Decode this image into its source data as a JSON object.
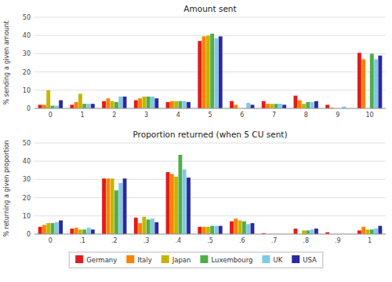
{
  "chart_data": [
    {
      "type": "bar",
      "title": "Amount sent",
      "y_label": "% sending a given amount",
      "categories": [
        "0",
        "1",
        "2",
        "3",
        "4",
        "5",
        "6",
        "7",
        "8",
        "9",
        "10"
      ],
      "series": [
        {
          "name": "Germany",
          "color": "#e41a1c",
          "values": [
            2.0,
            2.0,
            4.0,
            4.5,
            3.5,
            37.0,
            4.0,
            4.0,
            7.0,
            2.0,
            30.5
          ]
        },
        {
          "name": "Italy",
          "color": "#ff7f00",
          "values": [
            2.0,
            3.5,
            5.5,
            5.5,
            4.0,
            39.5,
            2.0,
            2.5,
            4.5,
            0.5,
            27.0
          ]
        },
        {
          "name": "Japan",
          "color": "#c8b400",
          "values": [
            10.0,
            8.0,
            4.0,
            6.5,
            4.0,
            40.0,
            0.0,
            2.5,
            2.5,
            0.0,
            0.0
          ]
        },
        {
          "name": "Luxembourg",
          "color": "#4daf4a",
          "values": [
            1.5,
            2.5,
            3.5,
            6.5,
            4.0,
            41.0,
            0.0,
            2.5,
            3.5,
            0.0,
            30.0
          ]
        },
        {
          "name": "UK",
          "color": "#80c8e8",
          "values": [
            1.5,
            2.5,
            6.5,
            6.5,
            4.0,
            38.5,
            3.0,
            2.5,
            3.5,
            1.0,
            27.0
          ]
        },
        {
          "name": "USA",
          "color": "#2b2b9e",
          "values": [
            4.5,
            2.5,
            6.5,
            5.5,
            3.5,
            39.5,
            2.0,
            2.0,
            4.0,
            0.0,
            29.0
          ]
        }
      ],
      "ylim": [
        0,
        50
      ],
      "yticks": [
        0,
        10,
        20,
        30,
        40,
        50
      ],
      "grid": true
    },
    {
      "type": "bar",
      "title": "Proportion returned (when 5 CU sent)",
      "y_label": "% returning a given proportion",
      "categories": [
        "0",
        ".1",
        ".2",
        ".3",
        ".4",
        ".5",
        ".6",
        ".7",
        ".8",
        ".9",
        "1"
      ],
      "series": [
        {
          "name": "Germany",
          "color": "#e41a1c",
          "values": [
            4.0,
            3.0,
            30.5,
            9.0,
            34.0,
            4.0,
            7.0,
            0.5,
            3.0,
            1.0,
            2.0
          ]
        },
        {
          "name": "Italy",
          "color": "#ff7f00",
          "values": [
            5.0,
            3.5,
            30.5,
            6.0,
            33.0,
            4.0,
            8.5,
            0.0,
            0.0,
            0.0,
            4.0
          ]
        },
        {
          "name": "Japan",
          "color": "#c8b400",
          "values": [
            6.0,
            2.5,
            30.5,
            9.5,
            31.5,
            4.0,
            7.5,
            0.0,
            2.0,
            0.0,
            2.5
          ]
        },
        {
          "name": "Luxembourg",
          "color": "#4daf4a",
          "values": [
            6.0,
            2.5,
            24.0,
            8.0,
            43.5,
            4.5,
            7.0,
            0.0,
            2.0,
            0.0,
            2.5
          ]
        },
        {
          "name": "UK",
          "color": "#80c8e8",
          "values": [
            6.5,
            3.5,
            28.0,
            8.5,
            35.5,
            4.5,
            5.5,
            0.0,
            2.5,
            0.0,
            3.0
          ]
        },
        {
          "name": "USA",
          "color": "#2b2b9e",
          "values": [
            7.5,
            2.5,
            30.5,
            6.5,
            31.0,
            4.5,
            6.0,
            0.0,
            3.0,
            0.0,
            4.5
          ]
        }
      ],
      "ylim": [
        0,
        50
      ],
      "yticks": [
        0,
        10,
        20,
        30,
        40,
        50
      ],
      "grid": true,
      "legend": "bottom"
    }
  ]
}
